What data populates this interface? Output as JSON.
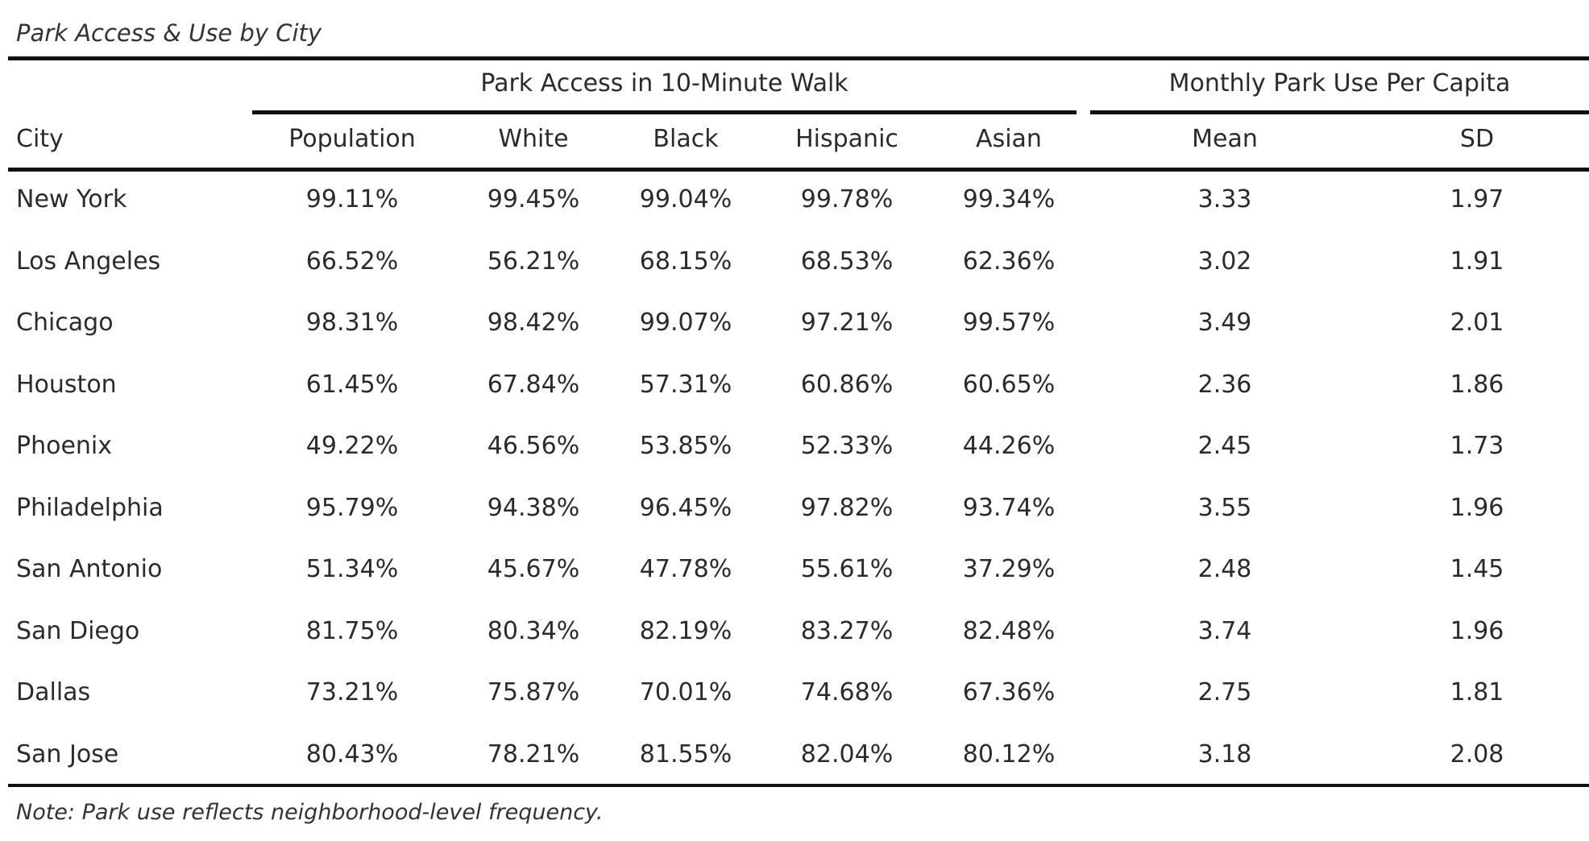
{
  "table": {
    "caption": "Park Access & Use by City",
    "note": "Note: Park use reflects neighborhood-level frequency.",
    "group_headers": {
      "access": "Park Access in 10-Minute Walk",
      "use": "Monthly Park Use Per Capita"
    },
    "columns": [
      "City",
      "Population",
      "White",
      "Black",
      "Hispanic",
      "Asian",
      "Mean",
      "SD"
    ],
    "rows": [
      [
        "New York",
        "99.11%",
        "99.45%",
        "99.04%",
        "99.78%",
        "99.34%",
        "3.33",
        "1.97"
      ],
      [
        "Los Angeles",
        "66.52%",
        "56.21%",
        "68.15%",
        "68.53%",
        "62.36%",
        "3.02",
        "1.91"
      ],
      [
        "Chicago",
        "98.31%",
        "98.42%",
        "99.07%",
        "97.21%",
        "99.57%",
        "3.49",
        "2.01"
      ],
      [
        "Houston",
        "61.45%",
        "67.84%",
        "57.31%",
        "60.86%",
        "60.65%",
        "2.36",
        "1.86"
      ],
      [
        "Phoenix",
        "49.22%",
        "46.56%",
        "53.85%",
        "52.33%",
        "44.26%",
        "2.45",
        "1.73"
      ],
      [
        "Philadelphia",
        "95.79%",
        "94.38%",
        "96.45%",
        "97.82%",
        "93.74%",
        "3.55",
        "1.96"
      ],
      [
        "San Antonio",
        "51.34%",
        "45.67%",
        "47.78%",
        "55.61%",
        "37.29%",
        "2.48",
        "1.45"
      ],
      [
        "San Diego",
        "81.75%",
        "80.34%",
        "82.19%",
        "83.27%",
        "82.48%",
        "3.74",
        "1.96"
      ],
      [
        "Dallas",
        "73.21%",
        "75.87%",
        "70.01%",
        "74.68%",
        "67.36%",
        "2.75",
        "1.81"
      ],
      [
        "San Jose",
        "80.43%",
        "78.21%",
        "81.55%",
        "82.04%",
        "80.12%",
        "3.18",
        "2.08"
      ]
    ]
  }
}
